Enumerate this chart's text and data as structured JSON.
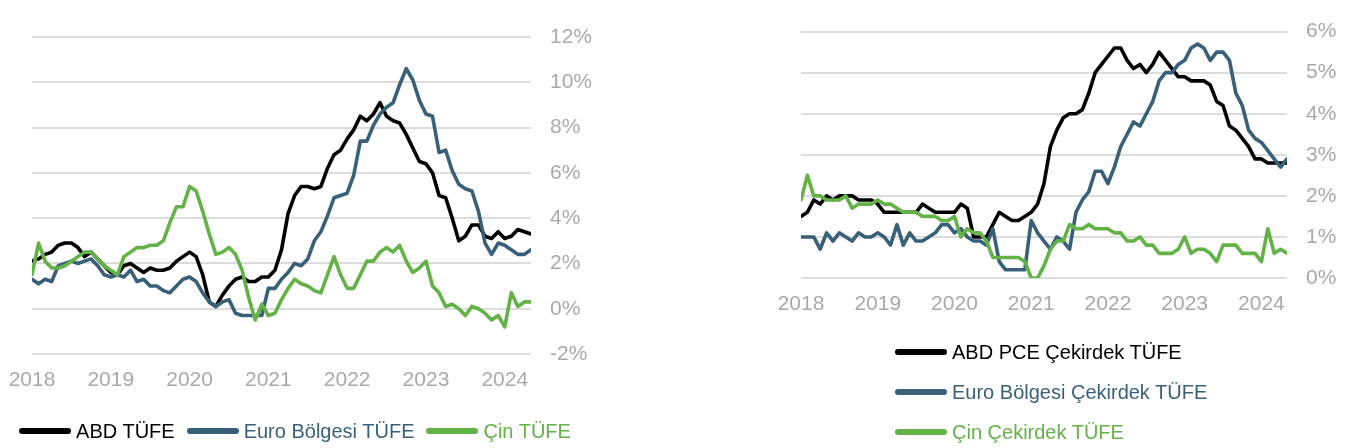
{
  "chart_data": [
    {
      "type": "line",
      "x": [
        "2018-01",
        "2018-02",
        "2018-03",
        "2018-04",
        "2018-05",
        "2018-06",
        "2018-07",
        "2018-08",
        "2018-09",
        "2018-10",
        "2018-11",
        "2018-12",
        "2019-01",
        "2019-02",
        "2019-03",
        "2019-04",
        "2019-05",
        "2019-06",
        "2019-07",
        "2019-08",
        "2019-09",
        "2019-10",
        "2019-11",
        "2019-12",
        "2020-01",
        "2020-02",
        "2020-03",
        "2020-04",
        "2020-05",
        "2020-06",
        "2020-07",
        "2020-08",
        "2020-09",
        "2020-10",
        "2020-11",
        "2020-12",
        "2021-01",
        "2021-02",
        "2021-03",
        "2021-04",
        "2021-05",
        "2021-06",
        "2021-07",
        "2021-08",
        "2021-09",
        "2021-10",
        "2021-11",
        "2021-12",
        "2022-01",
        "2022-02",
        "2022-03",
        "2022-04",
        "2022-05",
        "2022-06",
        "2022-07",
        "2022-08",
        "2022-09",
        "2022-10",
        "2022-11",
        "2022-12",
        "2023-01",
        "2023-02",
        "2023-03",
        "2023-04",
        "2023-05",
        "2023-06",
        "2023-07",
        "2023-08",
        "2023-09",
        "2023-10",
        "2023-11",
        "2023-12",
        "2024-01",
        "2024-02",
        "2024-03",
        "2024-04",
        "2024-05"
      ],
      "xlim": [
        "2018-01",
        "2024-05"
      ],
      "xticks": [
        "2018",
        "2019",
        "2020",
        "2021",
        "2022",
        "2023",
        "2024"
      ],
      "ylim": [
        -2,
        12
      ],
      "yticks": [
        {
          "value": -2,
          "label": "-2%"
        },
        {
          "value": 0,
          "label": "0%"
        },
        {
          "value": 2,
          "label": "2%"
        },
        {
          "value": 4,
          "label": "4%"
        },
        {
          "value": 6,
          "label": "6%"
        },
        {
          "value": 8,
          "label": "8%"
        },
        {
          "value": 10,
          "label": "10%"
        },
        {
          "value": 12,
          "label": "12%"
        }
      ],
      "grid": "y",
      "legend": "bottom",
      "series": [
        {
          "name": "ABD TÜFE",
          "color": "#000000",
          "values": [
            2.1,
            2.2,
            2.4,
            2.5,
            2.8,
            2.9,
            2.9,
            2.7,
            2.3,
            2.5,
            2.2,
            1.9,
            1.6,
            1.5,
            1.9,
            2.0,
            1.8,
            1.6,
            1.8,
            1.7,
            1.7,
            1.8,
            2.1,
            2.3,
            2.5,
            2.3,
            1.5,
            0.3,
            0.1,
            0.6,
            1.0,
            1.3,
            1.4,
            1.2,
            1.2,
            1.4,
            1.4,
            1.7,
            2.6,
            4.2,
            5.0,
            5.4,
            5.4,
            5.3,
            5.4,
            6.2,
            6.8,
            7.0,
            7.5,
            7.9,
            8.5,
            8.3,
            8.6,
            9.1,
            8.5,
            8.3,
            8.2,
            7.7,
            7.1,
            6.5,
            6.4,
            6.0,
            5.0,
            4.9,
            4.0,
            3.0,
            3.2,
            3.7,
            3.7,
            3.2,
            3.1,
            3.4,
            3.1,
            3.2,
            3.5,
            3.4,
            3.3
          ]
        },
        {
          "name": "Euro Bölgesi TÜFE",
          "color": "#396079",
          "values": [
            1.3,
            1.1,
            1.3,
            1.2,
            1.9,
            2.0,
            2.1,
            2.0,
            2.1,
            2.2,
            1.9,
            1.5,
            1.4,
            1.5,
            1.4,
            1.7,
            1.2,
            1.3,
            1.0,
            1.0,
            0.8,
            0.7,
            1.0,
            1.3,
            1.4,
            1.2,
            0.7,
            0.3,
            0.1,
            0.3,
            0.4,
            -0.2,
            -0.3,
            -0.3,
            -0.3,
            -0.3,
            0.9,
            0.9,
            1.3,
            1.6,
            2.0,
            1.9,
            2.2,
            3.0,
            3.4,
            4.1,
            4.9,
            5.0,
            5.1,
            5.9,
            7.4,
            7.4,
            8.1,
            8.6,
            8.9,
            9.1,
            9.9,
            10.6,
            10.1,
            9.2,
            8.6,
            8.5,
            6.9,
            7.0,
            6.1,
            5.5,
            5.3,
            5.2,
            4.3,
            2.9,
            2.4,
            2.9,
            2.8,
            2.6,
            2.4,
            2.4,
            2.6
          ]
        },
        {
          "name": "Çin TÜFE",
          "color": "#62b246",
          "values": [
            1.5,
            2.9,
            2.1,
            1.8,
            1.8,
            1.9,
            2.1,
            2.3,
            2.5,
            2.5,
            2.2,
            1.9,
            1.7,
            1.5,
            2.3,
            2.5,
            2.7,
            2.7,
            2.8,
            2.8,
            3.0,
            3.8,
            4.5,
            4.5,
            5.4,
            5.2,
            4.3,
            3.3,
            2.4,
            2.5,
            2.7,
            2.4,
            1.7,
            0.5,
            -0.5,
            0.2,
            -0.3,
            -0.2,
            0.4,
            0.9,
            1.3,
            1.1,
            1.0,
            0.8,
            0.7,
            1.5,
            2.3,
            1.5,
            0.9,
            0.9,
            1.5,
            2.1,
            2.1,
            2.5,
            2.7,
            2.5,
            2.8,
            2.1,
            1.6,
            1.8,
            2.1,
            1.0,
            0.7,
            0.1,
            0.2,
            0.0,
            -0.3,
            0.1,
            0.0,
            -0.2,
            -0.5,
            -0.3,
            -0.8,
            0.7,
            0.1,
            0.3,
            0.3
          ]
        }
      ]
    },
    {
      "type": "line",
      "x": [
        "2018-01",
        "2018-02",
        "2018-03",
        "2018-04",
        "2018-05",
        "2018-06",
        "2018-07",
        "2018-08",
        "2018-09",
        "2018-10",
        "2018-11",
        "2018-12",
        "2019-01",
        "2019-02",
        "2019-03",
        "2019-04",
        "2019-05",
        "2019-06",
        "2019-07",
        "2019-08",
        "2019-09",
        "2019-10",
        "2019-11",
        "2019-12",
        "2020-01",
        "2020-02",
        "2020-03",
        "2020-04",
        "2020-05",
        "2020-06",
        "2020-07",
        "2020-08",
        "2020-09",
        "2020-10",
        "2020-11",
        "2020-12",
        "2021-01",
        "2021-02",
        "2021-03",
        "2021-04",
        "2021-05",
        "2021-06",
        "2021-07",
        "2021-08",
        "2021-09",
        "2021-10",
        "2021-11",
        "2021-12",
        "2022-01",
        "2022-02",
        "2022-03",
        "2022-04",
        "2022-05",
        "2022-06",
        "2022-07",
        "2022-08",
        "2022-09",
        "2022-10",
        "2022-11",
        "2022-12",
        "2023-01",
        "2023-02",
        "2023-03",
        "2023-04",
        "2023-05",
        "2023-06",
        "2023-07",
        "2023-08",
        "2023-09",
        "2023-10",
        "2023-11",
        "2023-12",
        "2024-01",
        "2024-02",
        "2024-03",
        "2024-04",
        "2024-05"
      ],
      "xlim": [
        "2018-01",
        "2024-05"
      ],
      "xticks": [
        "2018",
        "2019",
        "2020",
        "2021",
        "2022",
        "2023",
        "2024"
      ],
      "ylim": [
        0,
        6
      ],
      "yticks": [
        {
          "value": 0,
          "label": "0%"
        },
        {
          "value": 1,
          "label": "1%"
        },
        {
          "value": 2,
          "label": "2%"
        },
        {
          "value": 3,
          "label": "3%"
        },
        {
          "value": 4,
          "label": "4%"
        },
        {
          "value": 5,
          "label": "5%"
        },
        {
          "value": 6,
          "label": "6%"
        }
      ],
      "grid": "y",
      "legend": "bottom",
      "series": [
        {
          "name": "ABD PCE Çekirdek TÜFE",
          "color": "#000000",
          "values": [
            1.5,
            1.6,
            1.9,
            1.8,
            2.0,
            1.9,
            2.0,
            2.0,
            2.0,
            1.9,
            1.9,
            1.9,
            1.8,
            1.6,
            1.6,
            1.6,
            1.6,
            1.6,
            1.6,
            1.8,
            1.7,
            1.6,
            1.6,
            1.6,
            1.6,
            1.8,
            1.7,
            1.0,
            1.0,
            1.0,
            1.3,
            1.6,
            1.5,
            1.4,
            1.4,
            1.5,
            1.6,
            1.8,
            2.3,
            3.2,
            3.6,
            3.9,
            4.0,
            4.0,
            4.1,
            4.5,
            5.0,
            5.2,
            5.4,
            5.6,
            5.6,
            5.3,
            5.1,
            5.2,
            5.0,
            5.2,
            5.5,
            5.3,
            5.1,
            4.9,
            4.9,
            4.8,
            4.8,
            4.8,
            4.7,
            4.3,
            4.2,
            3.7,
            3.6,
            3.4,
            3.2,
            2.9,
            2.9,
            2.8,
            2.8,
            2.8,
            2.8
          ]
        },
        {
          "name": "Euro Bölgesi Çekirdek TÜFE",
          "color": "#396079",
          "values": [
            1.0,
            1.0,
            1.0,
            0.7,
            1.1,
            0.9,
            1.1,
            1.0,
            0.9,
            1.1,
            1.0,
            1.0,
            1.1,
            1.0,
            0.8,
            1.3,
            0.8,
            1.1,
            0.9,
            0.9,
            1.0,
            1.1,
            1.3,
            1.3,
            1.1,
            1.2,
            1.0,
            0.9,
            0.9,
            0.8,
            1.2,
            0.4,
            0.2,
            0.2,
            0.2,
            0.2,
            1.4,
            1.1,
            0.9,
            0.7,
            1.0,
            0.9,
            0.7,
            1.6,
            1.9,
            2.1,
            2.6,
            2.6,
            2.3,
            2.7,
            3.2,
            3.5,
            3.8,
            3.7,
            4.0,
            4.3,
            4.8,
            5.0,
            5.0,
            5.2,
            5.3,
            5.6,
            5.7,
            5.6,
            5.3,
            5.5,
            5.5,
            5.3,
            4.5,
            4.2,
            3.6,
            3.4,
            3.3,
            3.1,
            2.9,
            2.7,
            2.9
          ]
        },
        {
          "name": "Çin Çekirdek TÜFE",
          "color": "#62b246",
          "values": [
            1.9,
            2.5,
            2.0,
            2.0,
            1.9,
            1.9,
            1.9,
            2.0,
            1.7,
            1.8,
            1.8,
            1.8,
            1.9,
            1.8,
            1.8,
            1.7,
            1.6,
            1.6,
            1.6,
            1.5,
            1.5,
            1.5,
            1.4,
            1.4,
            1.5,
            1.0,
            1.2,
            1.1,
            1.1,
            0.9,
            0.5,
            0.5,
            0.5,
            0.5,
            0.5,
            0.4,
            0.0,
            0.0,
            0.3,
            0.7,
            0.9,
            0.9,
            1.3,
            1.2,
            1.2,
            1.3,
            1.2,
            1.2,
            1.2,
            1.1,
            1.1,
            0.9,
            0.9,
            1.0,
            0.8,
            0.8,
            0.6,
            0.6,
            0.6,
            0.7,
            1.0,
            0.6,
            0.7,
            0.7,
            0.6,
            0.4,
            0.8,
            0.8,
            0.8,
            0.6,
            0.6,
            0.6,
            0.4,
            1.2,
            0.6,
            0.7,
            0.6
          ]
        }
      ]
    }
  ]
}
